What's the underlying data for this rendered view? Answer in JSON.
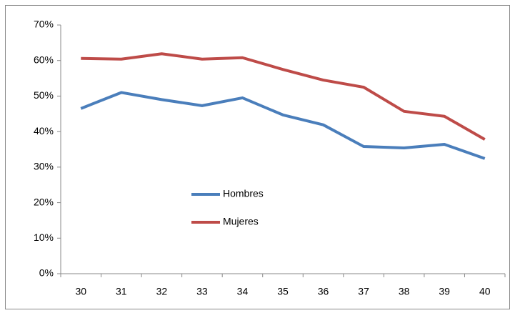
{
  "chart_data": {
    "type": "line",
    "categories": [
      "30",
      "31",
      "32",
      "33",
      "34",
      "35",
      "36",
      "37",
      "38",
      "39",
      "40"
    ],
    "series": [
      {
        "name": "Hombres",
        "color": "#4a7ebb",
        "values": [
          46.5,
          51,
          49,
          47.3,
          49.5,
          44.7,
          41.9,
          35.8,
          35.4,
          36.4,
          32.4
        ]
      },
      {
        "name": "Mujeres",
        "color": "#be4b48",
        "values": [
          60.6,
          60.4,
          61.9,
          60.4,
          60.8,
          57.5,
          54.5,
          52.5,
          45.7,
          44.3,
          37.8
        ]
      }
    ],
    "ylim": [
      0,
      70
    ],
    "yticks": [
      {
        "value": 0,
        "label": "0%"
      },
      {
        "value": 10,
        "label": "10%"
      },
      {
        "value": 20,
        "label": "20%"
      },
      {
        "value": 30,
        "label": "30%"
      },
      {
        "value": 40,
        "label": "40%"
      },
      {
        "value": 50,
        "label": "50%"
      },
      {
        "value": 60,
        "label": "60%"
      },
      {
        "value": 70,
        "label": "70%"
      }
    ],
    "grid": false
  }
}
